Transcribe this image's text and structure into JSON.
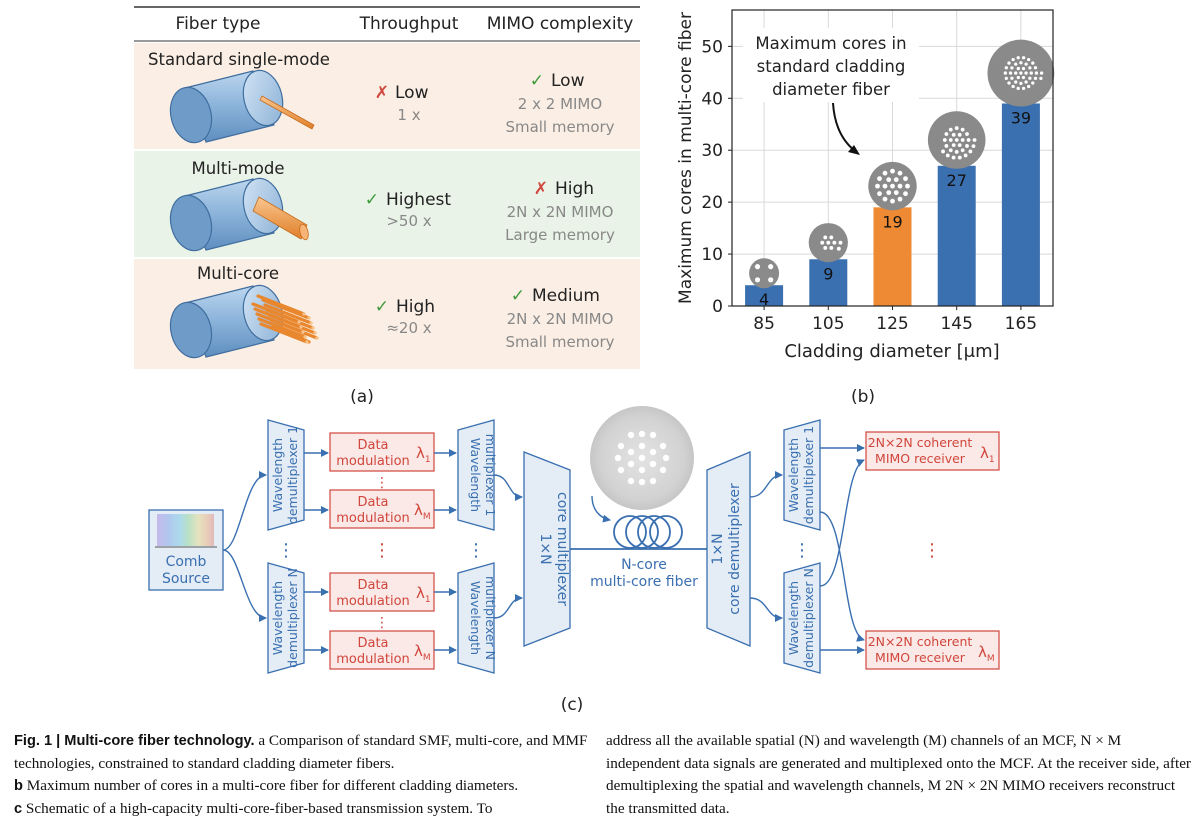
{
  "table": {
    "headers": [
      "Fiber type",
      "Throughput",
      "MIMO complexity"
    ],
    "rows": [
      {
        "name": "Standard single-mode",
        "throughput_mark": "✗",
        "throughput": "Low",
        "throughput_factor": "1 x",
        "mimo_mark": "✓",
        "mimo": "Low",
        "mimo_size": "2 x 2 MIMO",
        "memory": "Small memory",
        "row_color": "#fbeee4"
      },
      {
        "name": "Multi-mode",
        "throughput_mark": "✓",
        "throughput": "Highest",
        "throughput_factor": ">50 x",
        "mimo_mark": "✗",
        "mimo": "High",
        "mimo_size": "2N x 2N MIMO",
        "memory": "Large memory",
        "row_color": "#e9f3e7"
      },
      {
        "name": "Multi-core",
        "throughput_mark": "✓",
        "throughput": "High",
        "throughput_factor": "≈20 x",
        "mimo_mark": "✓",
        "mimo": "Medium",
        "mimo_size": "2N x 2N MIMO",
        "memory": "Small memory",
        "row_color": "#fbeee4"
      }
    ],
    "panel_label": "(a)"
  },
  "chart_data": {
    "type": "bar",
    "categories": [
      "85",
      "105",
      "125",
      "145",
      "165"
    ],
    "values": [
      4,
      9,
      19,
      27,
      39
    ],
    "highlight_index": 2,
    "colors": {
      "bar": "#3a6fb0",
      "highlight": "#ee8a34",
      "icon": "#8a8a8a"
    },
    "xlabel": "Cladding diameter [μm]",
    "ylabel": "Maximum cores in multi-core fiber",
    "ylim": [
      0,
      57
    ],
    "yticks": [
      0,
      10,
      20,
      30,
      40,
      50
    ],
    "grid": true,
    "annotation": [
      "Maximum cores in",
      "standard cladding",
      "diameter fiber"
    ],
    "panel_label": "(b)"
  },
  "diagram": {
    "comb_source": [
      "Comb",
      "Source"
    ],
    "demux_top": [
      "Wavelength",
      "demultiplexer 1"
    ],
    "demux_bottom": [
      "Wavelength",
      "demultiplexer N"
    ],
    "data_mod": [
      "Data",
      "modulation"
    ],
    "lambda_1": "λ",
    "lambda_1_sub": "1",
    "lambda_m": "λ",
    "lambda_m_sub": "M",
    "mux_top": [
      "Wavelength",
      "multiplexer 1"
    ],
    "mux_bottom": [
      "Wavelength",
      "multiplexer N"
    ],
    "core_mux": [
      "1×N",
      "core multiplexer"
    ],
    "fiber_label": [
      "N-core",
      "multi-core fiber"
    ],
    "core_demux": [
      "1×N",
      "core demultiplexer"
    ],
    "rx_demux_top": [
      "Wavelength",
      "demultiplexer 1"
    ],
    "rx_demux_bottom": [
      "Wavelength",
      "demultiplexer N"
    ],
    "receiver": [
      "2N×2N coherent",
      "MIMO receiver"
    ],
    "vdots": "⋮",
    "colors": {
      "blue": "#3a6fb0",
      "blue_fill": "#e4edf6",
      "red": "#d0463c",
      "red_fill": "#fbe9e7"
    },
    "panel_label": "(c)"
  },
  "caption": {
    "fig": "Fig. 1 | Multi-core fiber technology.",
    "left_rest": " a Comparison of standard SMF, multi-core, and MMF technologies, constrained to standard cladding diameter fibers.",
    "b_letter": "b",
    "b_text": " Maximum number of cores in a multi-core fiber for different cladding diameters.",
    "c_letter": "c",
    "c_text": " Schematic of a high-capacity multi-core-fiber-based transmission system. To",
    "right": "address all the available spatial (N) and wavelength (M) channels of an MCF, N × M independent data signals are generated and multiplexed onto the MCF. At the receiver side, after demultiplexing the spatial and wavelength channels, M 2N × 2N MIMO receivers reconstruct the transmitted data."
  }
}
